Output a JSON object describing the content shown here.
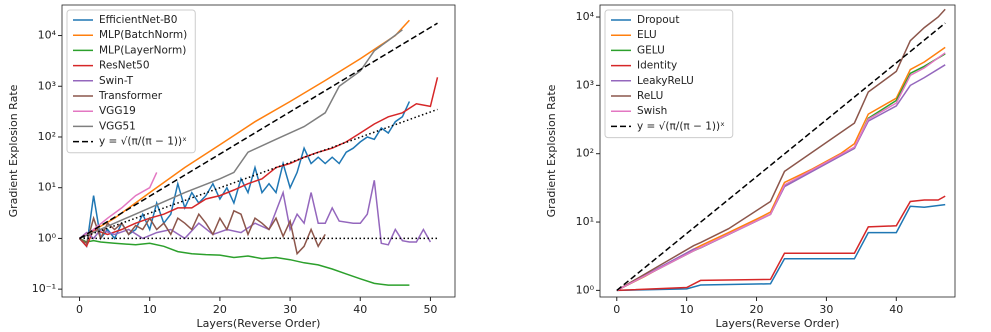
{
  "chart_data": [
    {
      "type": "line",
      "xlabel": "Layers(Reverse Order)",
      "ylabel": "Gradient Explosion Rate",
      "yscale": "log",
      "legend": "upper left",
      "xlim": [
        -2.5,
        53.5
      ],
      "xticks": [
        0,
        10,
        20,
        30,
        40,
        50
      ],
      "ylim": [
        0.07,
        40000
      ],
      "yticks": [
        {
          "value": 0.1,
          "label": "10⁻¹"
        },
        {
          "value": 1,
          "label": "10⁰"
        },
        {
          "value": 10,
          "label": "10¹"
        },
        {
          "value": 100,
          "label": "10²"
        },
        {
          "value": 1000,
          "label": "10³"
        },
        {
          "value": 10000,
          "label": "10⁴"
        }
      ],
      "series": [
        {
          "name": "EfficientNet-B0",
          "color": "#1f77b4",
          "x": [
            0,
            1,
            2,
            3,
            4,
            5,
            6,
            7,
            8,
            9,
            10,
            11,
            12,
            13,
            14,
            15,
            16,
            17,
            18,
            19,
            20,
            21,
            22,
            23,
            24,
            25,
            26,
            27,
            28,
            29,
            30,
            31,
            32,
            33,
            34,
            35,
            36,
            37,
            38,
            39,
            40,
            41,
            42,
            43,
            44,
            45,
            46,
            47
          ],
          "values": [
            1,
            0.7,
            7,
            1,
            1.5,
            1,
            2,
            1.2,
            1.5,
            3,
            1.5,
            5,
            2,
            3,
            12,
            4,
            8,
            5,
            7,
            12,
            6,
            10,
            5,
            15,
            8,
            25,
            8,
            12,
            8,
            30,
            10,
            20,
            60,
            30,
            40,
            30,
            40,
            30,
            50,
            60,
            80,
            100,
            90,
            150,
            120,
            200,
            250,
            500
          ]
        },
        {
          "name": "MLP(BatchNorm)",
          "color": "#ff7f0e",
          "x": [
            0,
            5,
            10,
            15,
            20,
            25,
            30,
            35,
            40,
            45,
            47
          ],
          "values": [
            1,
            2.5,
            8,
            25,
            70,
            200,
            500,
            1300,
            3500,
            10000,
            20000
          ]
        },
        {
          "name": "MLP(LayerNorm)",
          "color": "#2ca02c",
          "x": [
            0,
            1,
            2,
            3,
            5,
            8,
            10,
            12,
            14,
            16,
            18,
            20,
            22,
            24,
            26,
            28,
            30,
            32,
            34,
            36,
            38,
            40,
            42,
            44,
            47
          ],
          "values": [
            1,
            0.85,
            0.9,
            0.85,
            0.8,
            0.75,
            0.8,
            0.7,
            0.55,
            0.5,
            0.48,
            0.47,
            0.42,
            0.45,
            0.4,
            0.42,
            0.38,
            0.33,
            0.3,
            0.25,
            0.2,
            0.16,
            0.13,
            0.12,
            0.12
          ]
        },
        {
          "name": "ResNet50",
          "color": "#d62728",
          "x": [
            0,
            1,
            2,
            4,
            6,
            8,
            10,
            12,
            14,
            16,
            18,
            20,
            22,
            24,
            26,
            28,
            30,
            32,
            34,
            36,
            38,
            40,
            42,
            44,
            46,
            48,
            50,
            51
          ],
          "values": [
            1,
            0.7,
            1.5,
            1.2,
            1.5,
            2,
            2.5,
            3,
            4,
            4,
            6,
            7,
            9,
            12,
            15,
            25,
            30,
            40,
            50,
            60,
            80,
            120,
            180,
            250,
            300,
            450,
            400,
            1500
          ]
        },
        {
          "name": "Swin-T",
          "color": "#9467bd",
          "x": [
            0,
            1,
            2,
            3,
            5,
            7,
            9,
            11,
            13,
            15,
            17,
            19,
            21,
            23,
            25,
            27,
            29,
            30,
            31,
            32,
            33,
            34,
            35,
            36,
            37,
            39,
            40,
            41,
            42,
            43,
            44,
            45,
            46,
            47,
            48,
            49,
            50
          ],
          "values": [
            1,
            1.3,
            1,
            1.5,
            1.2,
            1.5,
            1,
            1.3,
            1.5,
            1,
            2,
            1.2,
            1.5,
            1.3,
            2,
            1.5,
            8,
            1.5,
            3,
            2,
            8,
            2,
            2,
            4,
            2.2,
            2,
            2,
            3,
            14,
            0.8,
            0.75,
            1.5,
            0.9,
            0.85,
            0.85,
            1.5,
            0.85
          ]
        },
        {
          "name": "Transformer",
          "color": "#8c564b",
          "x": [
            0,
            1,
            2,
            3,
            4,
            5,
            6,
            7,
            8,
            9,
            10,
            11,
            12,
            13,
            14,
            15,
            16,
            17,
            18,
            19,
            20,
            21,
            22,
            23,
            24,
            25,
            26,
            27,
            28,
            29,
            30,
            31,
            32,
            33,
            34,
            35
          ],
          "values": [
            1,
            0.8,
            2.5,
            1,
            2,
            1.5,
            2,
            1.2,
            1.8,
            1.5,
            2.5,
            1.5,
            2,
            1.2,
            2.5,
            2,
            1.5,
            3,
            2,
            1.2,
            2.5,
            1.5,
            3.5,
            3,
            1.2,
            2.5,
            2,
            1.5,
            2.5,
            1.1,
            2.2,
            0.5,
            0.7,
            1.5,
            0.7,
            1.2
          ]
        },
        {
          "name": "VGG19",
          "color": "#e377c2",
          "x": [
            0,
            2,
            4,
            6,
            8,
            10,
            11
          ],
          "values": [
            1,
            1.5,
            2.5,
            4,
            7,
            10,
            20
          ]
        },
        {
          "name": "VGG51",
          "color": "#7f7f7f",
          "x": [
            0,
            5,
            10,
            15,
            20,
            22,
            24,
            28,
            32,
            35,
            37,
            40,
            42,
            44,
            46
          ],
          "values": [
            1,
            2,
            4,
            8,
            15,
            20,
            50,
            90,
            160,
            300,
            1000,
            2000,
            5000,
            8000,
            13000
          ]
        },
        {
          "name": "y = √(π/(π − 1))ˣ",
          "color": "#000000",
          "linestyle": "dashed",
          "x": [
            0,
            51
          ],
          "values": [
            1,
            17500
          ]
        },
        {
          "color": "#000000",
          "linestyle": "dotted",
          "x": [
            0,
            51
          ],
          "values": [
            1,
            350
          ]
        },
        {
          "color": "#000000",
          "linestyle": "dotted",
          "x": [
            0,
            51
          ],
          "values": [
            1,
            1
          ]
        }
      ]
    },
    {
      "type": "line",
      "xlabel": "Layers(Reverse Order)",
      "ylabel": "Gradient Explosion Rate",
      "yscale": "log",
      "legend": "upper left",
      "xlim": [
        -2.4,
        48.4
      ],
      "xticks": [
        0,
        10,
        20,
        30,
        40
      ],
      "ylim": [
        0.8,
        15000
      ],
      "yticks": [
        {
          "value": 1,
          "label": "10⁰"
        },
        {
          "value": 10,
          "label": "10¹"
        },
        {
          "value": 100,
          "label": "10²"
        },
        {
          "value": 1000,
          "label": "10³"
        },
        {
          "value": 10000,
          "label": "10⁴"
        }
      ],
      "series": [
        {
          "name": "Dropout",
          "color": "#1f77b4",
          "x": [
            0,
            10,
            12,
            22,
            24,
            34,
            36,
            40,
            42,
            44,
            47
          ],
          "values": [
            1,
            1.05,
            1.2,
            1.25,
            2.9,
            2.9,
            7,
            7,
            17,
            16.5,
            18
          ]
        },
        {
          "name": "ELU",
          "color": "#ff7f0e",
          "x": [
            0,
            4,
            8,
            11,
            12,
            16,
            20,
            22,
            24,
            28,
            32,
            34,
            36,
            40,
            42,
            44,
            47
          ],
          "values": [
            1,
            1.6,
            2.7,
            4,
            4.5,
            7,
            11,
            14,
            38,
            60,
            100,
            140,
            380,
            650,
            1700,
            2200,
            3600
          ]
        },
        {
          "name": "GELU",
          "color": "#2ca02c",
          "x": [
            0,
            11,
            12,
            22,
            24,
            34,
            36,
            40,
            42,
            44,
            47
          ],
          "values": [
            1,
            3.8,
            4.2,
            13,
            34,
            120,
            330,
            600,
            1500,
            1900,
            2900
          ]
        },
        {
          "name": "Identity",
          "color": "#d62728",
          "x": [
            0,
            10,
            12,
            22,
            24,
            34,
            36,
            40,
            42,
            44,
            46,
            47
          ],
          "values": [
            1,
            1.1,
            1.4,
            1.45,
            3.5,
            3.5,
            8.5,
            8.8,
            20,
            21,
            21,
            24
          ]
        },
        {
          "name": "LeakyReLU",
          "color": "#9467bd",
          "x": [
            0,
            11,
            12,
            22,
            24,
            34,
            36,
            40,
            42,
            44,
            47
          ],
          "values": [
            1,
            4,
            4.2,
            13,
            33,
            120,
            300,
            500,
            1000,
            1300,
            2000
          ]
        },
        {
          "name": "ReLU",
          "color": "#8c564b",
          "x": [
            0,
            11,
            12,
            16,
            22,
            24,
            34,
            36,
            40,
            42,
            44,
            46,
            47
          ],
          "values": [
            1,
            4.5,
            5,
            8,
            20,
            55,
            280,
            800,
            1600,
            4500,
            7000,
            10000,
            13000
          ]
        },
        {
          "name": "Swish",
          "color": "#e377c2",
          "x": [
            0,
            11,
            22,
            24,
            34,
            36,
            40,
            42,
            44,
            47
          ],
          "values": [
            1,
            3.8,
            13,
            35,
            125,
            320,
            550,
            1400,
            1800,
            3000
          ]
        },
        {
          "name": "y = √(π/(π − 1))ˣ",
          "color": "#000000",
          "linestyle": "dashed",
          "x": [
            0,
            47
          ],
          "values": [
            1,
            8150
          ]
        }
      ]
    }
  ]
}
